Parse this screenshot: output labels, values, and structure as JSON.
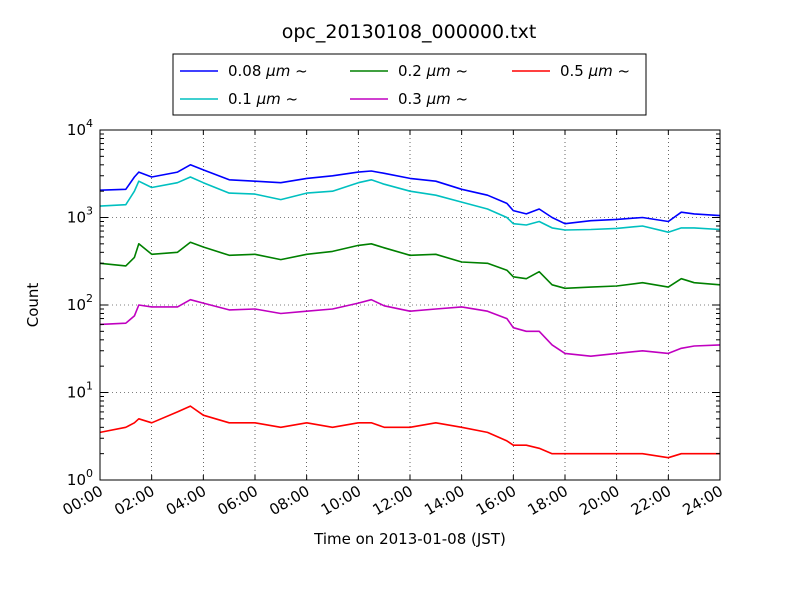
{
  "chart_data": {
    "type": "line",
    "title": "opc_20130108_000000.txt",
    "xlabel": "Time on 2013-01-08 (JST)",
    "ylabel": "Count",
    "y_scale": "log",
    "ylim": [
      1,
      10000
    ],
    "xlim": [
      "2013-01-08 00:00",
      "2013-01-09 00:00"
    ],
    "x_tick_labels": [
      "00:00",
      "02:00",
      "04:00",
      "06:00",
      "08:00",
      "10:00",
      "12:00",
      "14:00",
      "16:00",
      "18:00",
      "20:00",
      "22:00",
      "24:00"
    ],
    "y_tick_labels": [
      {
        "base": "10",
        "exp": "0"
      },
      {
        "base": "10",
        "exp": "1"
      },
      {
        "base": "10",
        "exp": "2"
      },
      {
        "base": "10",
        "exp": "3"
      },
      {
        "base": "10",
        "exp": "4"
      }
    ],
    "grid": true,
    "legend_position": "top-center",
    "legend_unit": "μm",
    "legend_suffix": "~",
    "x_times": [
      "00:00",
      "01:00",
      "01:20",
      "01:30",
      "02:00",
      "03:00",
      "03:30",
      "04:00",
      "05:00",
      "06:00",
      "07:00",
      "08:00",
      "09:00",
      "10:00",
      "10:30",
      "11:00",
      "12:00",
      "13:00",
      "14:00",
      "15:00",
      "15:45",
      "16:00",
      "16:30",
      "17:00",
      "17:30",
      "18:00",
      "19:00",
      "20:00",
      "21:00",
      "22:00",
      "22:30",
      "23:00",
      "24:00"
    ],
    "series": [
      {
        "name": "0.08",
        "color": "#0000ff",
        "values": [
          2050,
          2100,
          2900,
          3300,
          2900,
          3300,
          4000,
          3500,
          2700,
          2600,
          2500,
          2800,
          3000,
          3300,
          3400,
          3200,
          2800,
          2600,
          2100,
          1800,
          1450,
          1200,
          1100,
          1250,
          1000,
          850,
          920,
          950,
          1000,
          900,
          1150,
          1100,
          1050
        ]
      },
      {
        "name": "0.1",
        "color": "#00c0c0",
        "values": [
          1350,
          1400,
          2000,
          2600,
          2200,
          2500,
          2900,
          2500,
          1900,
          1850,
          1600,
          1900,
          2000,
          2500,
          2700,
          2400,
          2000,
          1800,
          1500,
          1250,
          1000,
          850,
          820,
          900,
          760,
          720,
          730,
          750,
          800,
          680,
          760,
          760,
          730
        ]
      },
      {
        "name": "0.2",
        "color": "#008000",
        "values": [
          300,
          280,
          350,
          500,
          380,
          400,
          520,
          460,
          370,
          380,
          330,
          380,
          410,
          480,
          500,
          450,
          370,
          380,
          310,
          300,
          250,
          210,
          200,
          240,
          170,
          155,
          160,
          165,
          180,
          160,
          200,
          180,
          170
        ]
      },
      {
        "name": "0.3",
        "color": "#c000c0",
        "values": [
          60,
          62,
          75,
          100,
          95,
          95,
          115,
          105,
          88,
          90,
          80,
          85,
          90,
          105,
          115,
          98,
          85,
          90,
          95,
          85,
          70,
          55,
          50,
          50,
          35,
          28,
          26,
          28,
          30,
          28,
          32,
          34,
          35
        ]
      },
      {
        "name": "0.5",
        "color": "#ff0000",
        "values": [
          3.5,
          4,
          4.5,
          5,
          4.5,
          6,
          7,
          5.5,
          4.5,
          4.5,
          4,
          4.5,
          4,
          4.5,
          4.5,
          4,
          4,
          4.5,
          4,
          3.5,
          2.8,
          2.5,
          2.5,
          2.3,
          2,
          2,
          2,
          2,
          2,
          1.8,
          2,
          2,
          2
        ]
      }
    ]
  }
}
